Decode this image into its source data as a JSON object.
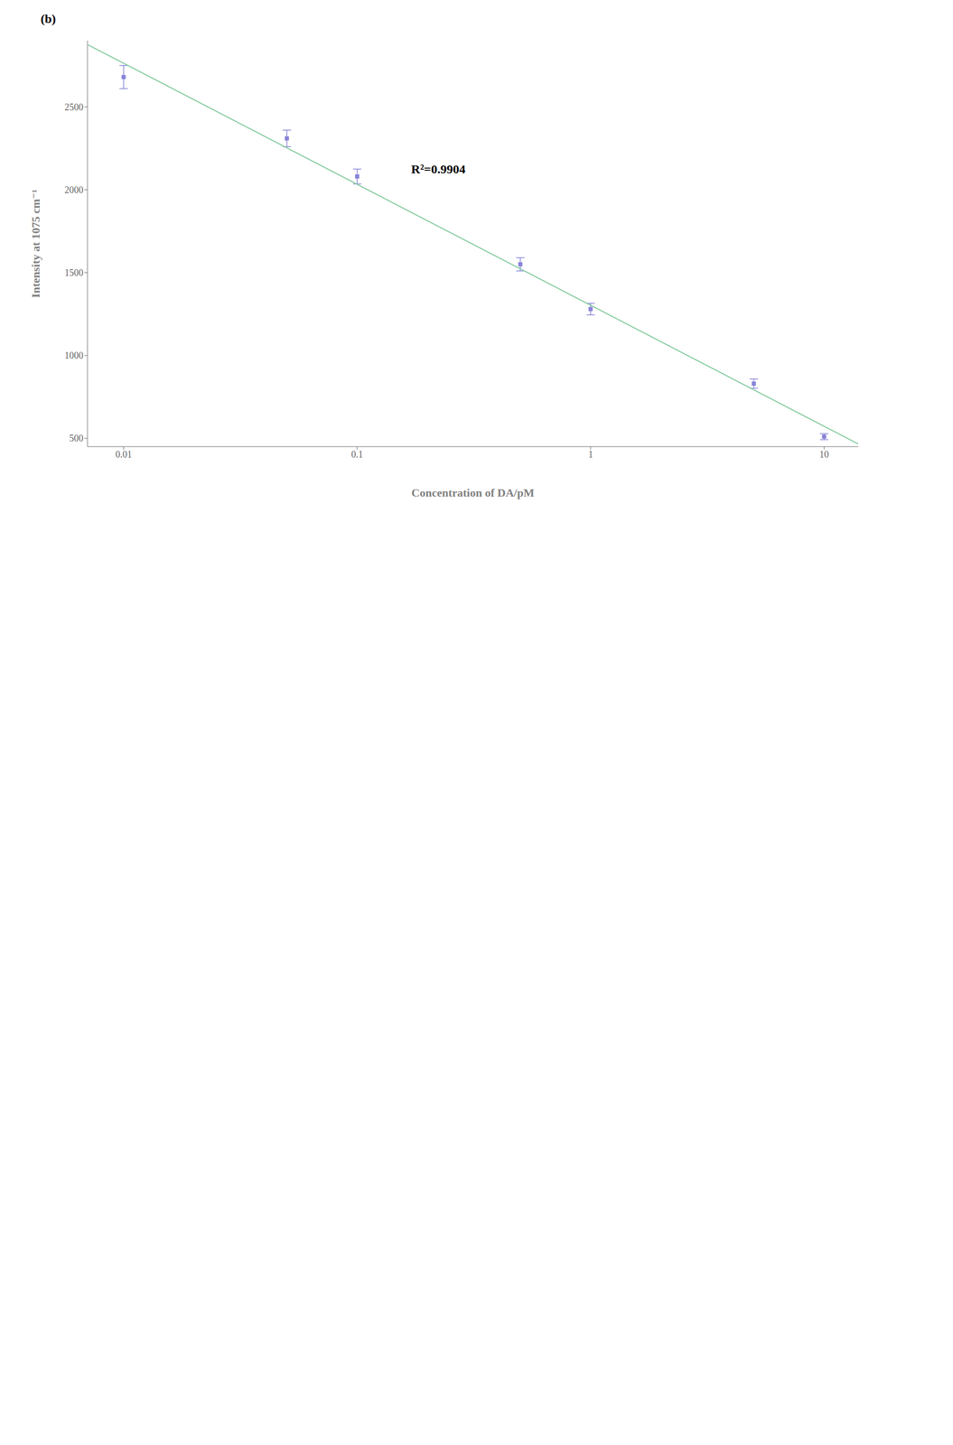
{
  "chart_data": {
    "type": "scatter",
    "annotations": [
      "(b)",
      "R²=0.9904"
    ],
    "x_label": "Concentration of DA/pM",
    "y_label": "Intensity at 1075 cm⁻¹",
    "log": "x",
    "xlim": [
      0.007,
      14
    ],
    "ylim": [
      450,
      2900
    ],
    "xticks": [
      0.01,
      0.1,
      1,
      10
    ],
    "yticks": [
      500,
      1000,
      1500,
      2000,
      2500
    ],
    "grid": false,
    "series": [
      {
        "type": "line",
        "color": "#82ca9d",
        "x": [
          0.007,
          14
        ],
        "values": [
          2876.23,
          466.12
        ]
      },
      {
        "type": "scatter",
        "marker": "square",
        "color": "#8884d8",
        "x": [
          0.01,
          0.05,
          0.1,
          0.5,
          1.0,
          5.0,
          10.0
        ],
        "values": [
          2680,
          2310,
          2080,
          1550,
          1280,
          830,
          510
        ],
        "error": [
          70,
          50,
          45,
          40,
          35,
          28,
          18
        ]
      }
    ]
  }
}
